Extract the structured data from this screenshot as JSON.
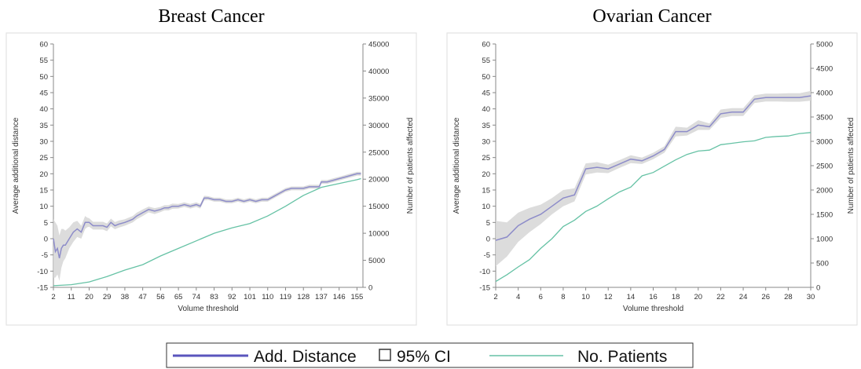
{
  "chart_data": [
    {
      "type": "line",
      "title": "Breast Cancer",
      "xlabel": "Volume threshold",
      "ylabel_left": "Average additional distance",
      "ylabel_right": "Number of patients affected",
      "xlim": [
        2,
        158
      ],
      "ylim_left": [
        -15,
        60
      ],
      "ylim_right": [
        0,
        45000
      ],
      "xticks": [
        "2",
        "11",
        "20",
        "29",
        "38",
        "47",
        "56",
        "65",
        "74",
        "83",
        "92",
        "101",
        "110",
        "119",
        "128",
        "137",
        "146",
        "155"
      ],
      "yticks_left": [
        "-15",
        "-10",
        "-5",
        "0",
        "5",
        "10",
        "15",
        "20",
        "25",
        "30",
        "35",
        "40",
        "45",
        "50",
        "55",
        "60"
      ],
      "yticks_right": [
        "0",
        "5000",
        "10000",
        "15000",
        "20000",
        "25000",
        "30000",
        "35000",
        "40000",
        "45000"
      ],
      "series": [
        {
          "name": "Add. Distance",
          "axis": "left",
          "x": [
            2,
            3,
            4,
            5,
            6,
            7,
            8,
            10,
            12,
            14,
            16,
            18,
            19,
            20,
            22,
            25,
            27,
            29,
            31,
            33,
            35,
            38,
            40,
            42,
            44,
            47,
            50,
            53,
            56,
            58,
            60,
            62,
            65,
            68,
            71,
            74,
            76,
            78,
            80,
            83,
            86,
            89,
            92,
            95,
            98,
            101,
            104,
            107,
            110,
            113,
            116,
            119,
            122,
            125,
            128,
            131,
            134,
            136,
            137,
            140,
            143,
            146,
            149,
            152,
            155,
            157
          ],
          "values": [
            0,
            -4,
            -3,
            -6,
            -3,
            -2,
            -2,
            0,
            2,
            3,
            2,
            5,
            5,
            5,
            4,
            4,
            4,
            3.5,
            5,
            4,
            4.5,
            5,
            5.5,
            6,
            7,
            8,
            9,
            8.5,
            9,
            9.5,
            9.5,
            10,
            10,
            10.5,
            10,
            10.5,
            10,
            12.5,
            12.5,
            12,
            12,
            11.5,
            11.5,
            12,
            11.5,
            12,
            11.5,
            12,
            12,
            13,
            14,
            15,
            15.5,
            15.5,
            15.5,
            16,
            16,
            16,
            17.5,
            17.5,
            18,
            18.5,
            19,
            19.5,
            20,
            20
          ]
        },
        {
          "name": "95% CI",
          "axis": "left",
          "x": [
            2,
            3,
            4,
            5,
            6,
            7,
            8,
            10,
            12,
            14,
            16,
            18,
            19,
            20,
            22,
            25,
            27,
            29,
            31,
            33,
            35,
            38,
            40,
            42,
            44,
            47,
            50,
            53,
            56,
            58,
            60,
            62,
            65,
            68,
            71,
            74,
            76,
            78,
            80,
            83,
            86,
            89,
            92,
            95,
            98,
            101,
            104,
            107,
            110,
            113,
            116,
            119,
            122,
            125,
            128,
            131,
            134,
            136,
            137,
            140,
            143,
            146,
            149,
            152,
            155,
            157
          ],
          "lower": [
            -12,
            -12,
            -11,
            -13,
            -9,
            -7,
            -6,
            -3,
            -1,
            0.5,
            0,
            3,
            3.5,
            3.7,
            2.8,
            2.8,
            2.8,
            2.3,
            3.8,
            2.9,
            3.4,
            4,
            4.5,
            5,
            6,
            7,
            8.1,
            7.6,
            8.2,
            8.7,
            8.7,
            9.2,
            9.3,
            9.8,
            9.3,
            9.8,
            9.3,
            11.8,
            11.9,
            11.4,
            11.4,
            10.9,
            10.9,
            11.4,
            10.9,
            11.4,
            10.9,
            11.4,
            11.4,
            12.4,
            13.4,
            14.4,
            14.9,
            14.9,
            14.9,
            15.4,
            15.4,
            15.4,
            16.9,
            16.9,
            17.4,
            17.9,
            18.4,
            18.9,
            19.4,
            19.4
          ],
          "upper": [
            6,
            5,
            4,
            1,
            3,
            3,
            2.5,
            3.5,
            5,
            5.5,
            4,
            7,
            6.5,
            6.3,
            5.2,
            5.2,
            5.2,
            4.7,
            6.2,
            5.1,
            5.6,
            6,
            6.5,
            7,
            8,
            9,
            9.9,
            9.4,
            9.8,
            10.3,
            10.3,
            10.8,
            10.7,
            11.2,
            10.7,
            11.2,
            10.7,
            13.2,
            13.1,
            12.6,
            12.6,
            12.1,
            12.1,
            12.6,
            12.1,
            12.6,
            12.1,
            12.6,
            12.6,
            13.6,
            14.6,
            15.6,
            16.1,
            16.1,
            16.1,
            16.6,
            16.6,
            16.6,
            18.1,
            18.1,
            18.6,
            19.1,
            19.6,
            20.1,
            20.6,
            20.6
          ]
        },
        {
          "name": "No. Patients",
          "axis": "right",
          "x": [
            2,
            11,
            20,
            29,
            38,
            47,
            56,
            65,
            74,
            83,
            92,
            101,
            110,
            119,
            128,
            137,
            146,
            155,
            157
          ],
          "values": [
            300,
            500,
            1000,
            2000,
            3200,
            4200,
            5800,
            7200,
            8600,
            10000,
            11000,
            11800,
            13200,
            15000,
            17000,
            18500,
            19200,
            19900,
            20100
          ]
        }
      ]
    },
    {
      "type": "line",
      "title": "Ovarian Cancer",
      "xlabel": "Volume threshold",
      "ylabel_left": "Average additional distance",
      "ylabel_right": "Number of patients affected",
      "xlim": [
        2,
        30
      ],
      "ylim_left": [
        -15,
        60
      ],
      "ylim_right": [
        0,
        5000
      ],
      "xticks": [
        "2",
        "4",
        "6",
        "8",
        "10",
        "12",
        "14",
        "16",
        "18",
        "20",
        "22",
        "24",
        "26",
        "28",
        "30"
      ],
      "yticks_left": [
        "-15",
        "-10",
        "-5",
        "0",
        "5",
        "10",
        "15",
        "20",
        "25",
        "30",
        "35",
        "40",
        "45",
        "50",
        "55",
        "60"
      ],
      "yticks_right": [
        "0",
        "500",
        "1000",
        "1500",
        "2000",
        "2500",
        "3000",
        "3500",
        "4000",
        "4500",
        "5000"
      ],
      "series": [
        {
          "name": "Add. Distance",
          "axis": "left",
          "x": [
            2,
            3,
            4,
            5,
            6,
            7,
            8,
            9,
            10,
            11,
            12,
            13,
            14,
            15,
            16,
            17,
            18,
            19,
            20,
            21,
            22,
            23,
            24,
            25,
            26,
            27,
            28,
            29,
            30
          ],
          "values": [
            -0.5,
            0.5,
            4,
            6,
            7.5,
            10,
            12.5,
            13.5,
            21.5,
            22,
            21.5,
            23,
            24.5,
            24,
            25.5,
            27.5,
            33,
            33,
            35,
            34.5,
            38.5,
            39,
            39,
            43,
            43.5,
            43.5,
            43.5,
            43.5,
            44
          ]
        },
        {
          "name": "95% CI",
          "axis": "left",
          "x": [
            2,
            3,
            4,
            5,
            6,
            7,
            8,
            9,
            10,
            11,
            12,
            13,
            14,
            15,
            16,
            17,
            18,
            19,
            20,
            21,
            22,
            23,
            24,
            25,
            26,
            27,
            28,
            29,
            30
          ],
          "lower": [
            -8.5,
            -5.5,
            -1,
            2,
            4.5,
            7.5,
            10,
            11.5,
            19.8,
            20.4,
            20.2,
            21.8,
            23.3,
            23,
            24.5,
            26.5,
            31.5,
            31.8,
            33.5,
            33.5,
            37.2,
            37.8,
            37.8,
            41.8,
            42.3,
            42.3,
            42.2,
            42.2,
            42.5
          ],
          "upper": [
            5.5,
            5,
            8,
            9.5,
            10.5,
            12.5,
            15,
            15.5,
            23.2,
            23.6,
            22.8,
            24.2,
            25.7,
            25,
            26.5,
            28.5,
            34.5,
            34.2,
            36.5,
            35.5,
            39.8,
            40.2,
            40.2,
            44.2,
            44.7,
            44.7,
            44.8,
            44.8,
            45.5
          ]
        },
        {
          "name": "No. Patients",
          "axis": "right",
          "x": [
            2,
            3,
            4,
            5,
            6,
            7,
            8,
            9,
            10,
            11,
            12,
            13,
            14,
            15,
            16,
            17,
            18,
            19,
            20,
            21,
            22,
            23,
            24,
            25,
            26,
            27,
            28,
            29,
            30
          ],
          "values": [
            120,
            260,
            420,
            570,
            800,
            1000,
            1250,
            1380,
            1560,
            1670,
            1820,
            1960,
            2060,
            2290,
            2360,
            2490,
            2620,
            2730,
            2800,
            2820,
            2930,
            2960,
            2990,
            3010,
            3080,
            3100,
            3110,
            3160,
            3180
          ]
        }
      ]
    }
  ],
  "legend": {
    "items": [
      {
        "label": "Add. Distance",
        "kind": "line",
        "color": "#5a55bd"
      },
      {
        "label": "95% CI",
        "kind": "box",
        "color": "#444444"
      },
      {
        "label": "No. Patients",
        "kind": "line",
        "color": "#66c2a5"
      }
    ]
  },
  "colors": {
    "distance_line": "#8d8cc9",
    "ci_band": "#d8d8d8",
    "patients_line": "#66c2a5",
    "axis": "#888888",
    "frame": "#dddddd"
  }
}
